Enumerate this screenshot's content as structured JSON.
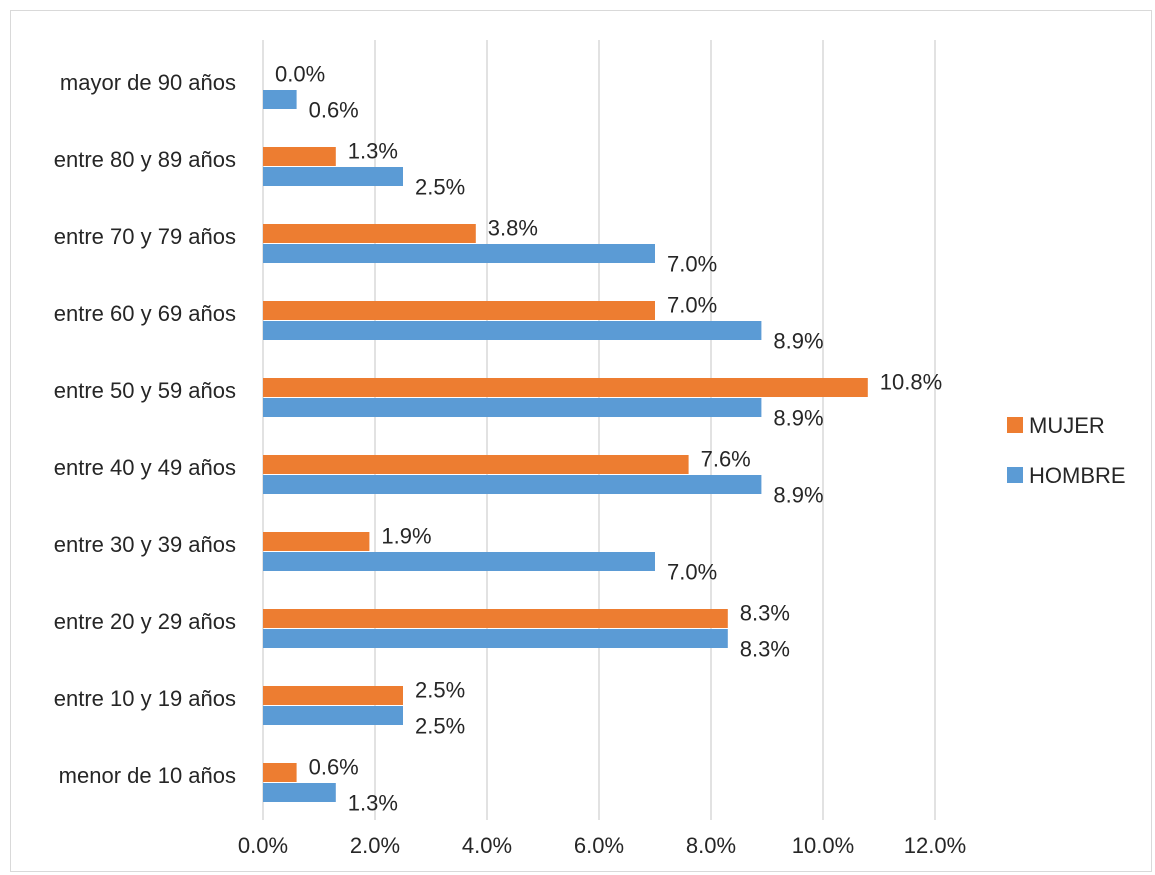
{
  "chart_data": {
    "type": "bar",
    "orientation": "horizontal",
    "categories": [
      "mayor de 90 años",
      "entre 80 y 89 años",
      "entre 70 y 79 años",
      "entre 60 y 69 años",
      "entre 50 y 59 años",
      "entre 40 y 49 años",
      "entre 30 y 39 años",
      "entre 20 y 29 años",
      "entre 10 y 19 años",
      "menor de 10 años"
    ],
    "series": [
      {
        "name": "MUJER",
        "color": "#ed7d31",
        "values": [
          0.0,
          1.3,
          3.8,
          7.0,
          10.8,
          7.6,
          1.9,
          8.3,
          2.5,
          0.6
        ],
        "labels": [
          "0.0%",
          "1.3%",
          "3.8%",
          "7.0%",
          "10.8%",
          "7.6%",
          "1.9%",
          "8.3%",
          "2.5%",
          "0.6%"
        ]
      },
      {
        "name": "HOMBRE",
        "color": "#5b9bd5",
        "values": [
          0.6,
          2.5,
          7.0,
          8.9,
          8.9,
          8.9,
          7.0,
          8.3,
          2.5,
          1.3
        ],
        "labels": [
          "0.6%",
          "2.5%",
          "7.0%",
          "8.9%",
          "8.9%",
          "8.9%",
          "7.0%",
          "8.3%",
          "2.5%",
          "1.3%"
        ]
      }
    ],
    "xlim": [
      0,
      12
    ],
    "ticks": [
      "0.0%",
      "2.0%",
      "4.0%",
      "6.0%",
      "8.0%",
      "10.0%",
      "12.0%"
    ],
    "grid": true,
    "gridline_color": "#d9d9d9",
    "legend_position": "right",
    "title": "",
    "xlabel": "",
    "ylabel": ""
  }
}
